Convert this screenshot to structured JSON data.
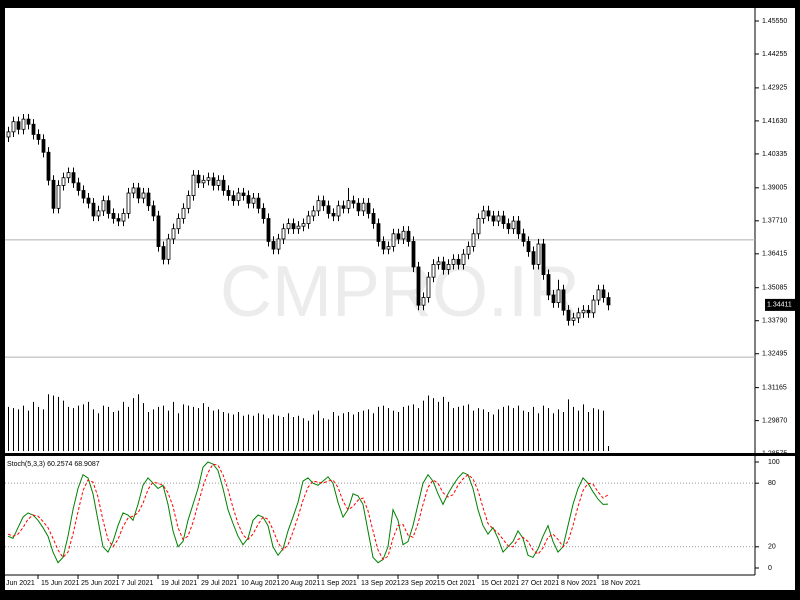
{
  "chart_data": [
    {
      "type": "candlestick",
      "watermark": "CMPRO.IR",
      "ylim": [
        1.286,
        1.4606
      ],
      "xlim": [
        -0.6,
        149.4
      ],
      "yticks": [
        {
          "value": 1.4555,
          "label": "1.45550"
        },
        {
          "value": 1.44255,
          "label": "1.44255"
        },
        {
          "value": 1.42925,
          "label": "1.42925"
        },
        {
          "value": 1.4163,
          "label": "1.41630"
        },
        {
          "value": 1.40335,
          "label": "1.40335"
        },
        {
          "value": 1.39005,
          "label": "1.39005"
        },
        {
          "value": 1.3771,
          "label": "1.37710"
        },
        {
          "value": 1.36415,
          "label": "1.36415"
        },
        {
          "value": 1.35085,
          "label": "1.35085"
        },
        {
          "value": 1.3379,
          "label": "1.33790"
        },
        {
          "value": 1.32495,
          "label": "1.32495"
        },
        {
          "value": 1.31165,
          "label": "1.31165"
        },
        {
          "value": 1.2987,
          "label": "1.29870"
        },
        {
          "value": 1.28575,
          "label": "1.28575"
        }
      ],
      "hlines": [
        1.3696,
        1.3236
      ],
      "last_price": 1.34411,
      "up_color": "#ffffff",
      "down_color": "#000000",
      "candles": [
        [
          1.41,
          1.414,
          1.408,
          1.412
        ],
        [
          1.412,
          1.418,
          1.41,
          1.416
        ],
        [
          1.416,
          1.418,
          1.411,
          1.413
        ],
        [
          1.413,
          1.419,
          1.411,
          1.417
        ],
        [
          1.417,
          1.419,
          1.413,
          1.415
        ],
        [
          1.415,
          1.417,
          1.409,
          1.411
        ],
        [
          1.411,
          1.413,
          1.407,
          1.409
        ],
        [
          1.409,
          1.411,
          1.402,
          1.404
        ],
        [
          1.404,
          1.406,
          1.391,
          1.393
        ],
        [
          1.393,
          1.395,
          1.38,
          1.382
        ],
        [
          1.382,
          1.393,
          1.38,
          1.391
        ],
        [
          1.391,
          1.396,
          1.389,
          1.394
        ],
        [
          1.394,
          1.398,
          1.392,
          1.396
        ],
        [
          1.396,
          1.398,
          1.39,
          1.392
        ],
        [
          1.392,
          1.394,
          1.387,
          1.389
        ],
        [
          1.389,
          1.391,
          1.384,
          1.386
        ],
        [
          1.386,
          1.388,
          1.382,
          1.384
        ],
        [
          1.384,
          1.386,
          1.377,
          1.379
        ],
        [
          1.379,
          1.383,
          1.377,
          1.381
        ],
        [
          1.381,
          1.387,
          1.379,
          1.385
        ],
        [
          1.385,
          1.387,
          1.378,
          1.38
        ],
        [
          1.38,
          1.382,
          1.376,
          1.378
        ],
        [
          1.378,
          1.38,
          1.375,
          1.377
        ],
        [
          1.377,
          1.382,
          1.375,
          1.38
        ],
        [
          1.38,
          1.39,
          1.378,
          1.388
        ],
        [
          1.388,
          1.392,
          1.386,
          1.39
        ],
        [
          1.39,
          1.392,
          1.384,
          1.386
        ],
        [
          1.386,
          1.39,
          1.384,
          1.388
        ],
        [
          1.388,
          1.39,
          1.381,
          1.383
        ],
        [
          1.383,
          1.385,
          1.377,
          1.379
        ],
        [
          1.379,
          1.381,
          1.365,
          1.367
        ],
        [
          1.367,
          1.369,
          1.36,
          1.362
        ],
        [
          1.362,
          1.372,
          1.36,
          1.37
        ],
        [
          1.37,
          1.376,
          1.368,
          1.374
        ],
        [
          1.374,
          1.38,
          1.372,
          1.378
        ],
        [
          1.378,
          1.384,
          1.376,
          1.382
        ],
        [
          1.382,
          1.389,
          1.38,
          1.387
        ],
        [
          1.387,
          1.397,
          1.385,
          1.395
        ],
        [
          1.395,
          1.397,
          1.39,
          1.392
        ],
        [
          1.392,
          1.395,
          1.39,
          1.393
        ],
        [
          1.393,
          1.396,
          1.391,
          1.394
        ],
        [
          1.394,
          1.396,
          1.389,
          1.391
        ],
        [
          1.391,
          1.395,
          1.389,
          1.393
        ],
        [
          1.393,
          1.395,
          1.387,
          1.389
        ],
        [
          1.389,
          1.391,
          1.385,
          1.387
        ],
        [
          1.387,
          1.389,
          1.383,
          1.385
        ],
        [
          1.385,
          1.39,
          1.383,
          1.388
        ],
        [
          1.388,
          1.39,
          1.385,
          1.387
        ],
        [
          1.387,
          1.389,
          1.382,
          1.384
        ],
        [
          1.384,
          1.388,
          1.382,
          1.386
        ],
        [
          1.386,
          1.388,
          1.38,
          1.382
        ],
        [
          1.382,
          1.384,
          1.376,
          1.378
        ],
        [
          1.378,
          1.38,
          1.367,
          1.369
        ],
        [
          1.369,
          1.371,
          1.364,
          1.366
        ],
        [
          1.366,
          1.372,
          1.364,
          1.37
        ],
        [
          1.37,
          1.376,
          1.368,
          1.374
        ],
        [
          1.374,
          1.378,
          1.372,
          1.376
        ],
        [
          1.376,
          1.378,
          1.372,
          1.374
        ],
        [
          1.374,
          1.377,
          1.372,
          1.375
        ],
        [
          1.375,
          1.378,
          1.373,
          1.376
        ],
        [
          1.376,
          1.381,
          1.374,
          1.379
        ],
        [
          1.379,
          1.383,
          1.377,
          1.381
        ],
        [
          1.381,
          1.387,
          1.379,
          1.385
        ],
        [
          1.385,
          1.387,
          1.381,
          1.383
        ],
        [
          1.383,
          1.385,
          1.378,
          1.38
        ],
        [
          1.38,
          1.382,
          1.377,
          1.379
        ],
        [
          1.379,
          1.385,
          1.377,
          1.383
        ],
        [
          1.383,
          1.385,
          1.38,
          1.382
        ],
        [
          1.382,
          1.39,
          1.38,
          1.385
        ],
        [
          1.385,
          1.387,
          1.382,
          1.384
        ],
        [
          1.384,
          1.386,
          1.379,
          1.381
        ],
        [
          1.381,
          1.386,
          1.379,
          1.384
        ],
        [
          1.384,
          1.386,
          1.378,
          1.38
        ],
        [
          1.38,
          1.382,
          1.374,
          1.376
        ],
        [
          1.376,
          1.378,
          1.367,
          1.369
        ],
        [
          1.369,
          1.371,
          1.364,
          1.366
        ],
        [
          1.366,
          1.369,
          1.364,
          1.367
        ],
        [
          1.367,
          1.374,
          1.365,
          1.372
        ],
        [
          1.372,
          1.374,
          1.368,
          1.37
        ],
        [
          1.37,
          1.375,
          1.368,
          1.373
        ],
        [
          1.373,
          1.375,
          1.367,
          1.369
        ],
        [
          1.369,
          1.371,
          1.357,
          1.359
        ],
        [
          1.359,
          1.361,
          1.342,
          1.344
        ],
        [
          1.344,
          1.349,
          1.342,
          1.347
        ],
        [
          1.347,
          1.357,
          1.345,
          1.355
        ],
        [
          1.355,
          1.362,
          1.353,
          1.36
        ],
        [
          1.36,
          1.363,
          1.358,
          1.361
        ],
        [
          1.361,
          1.363,
          1.356,
          1.358
        ],
        [
          1.358,
          1.362,
          1.356,
          1.36
        ],
        [
          1.36,
          1.364,
          1.358,
          1.362
        ],
        [
          1.362,
          1.364,
          1.358,
          1.36
        ],
        [
          1.36,
          1.366,
          1.358,
          1.364
        ],
        [
          1.364,
          1.369,
          1.362,
          1.367
        ],
        [
          1.367,
          1.374,
          1.365,
          1.372
        ],
        [
          1.372,
          1.38,
          1.37,
          1.378
        ],
        [
          1.378,
          1.383,
          1.376,
          1.381
        ],
        [
          1.381,
          1.383,
          1.377,
          1.379
        ],
        [
          1.379,
          1.381,
          1.375,
          1.377
        ],
        [
          1.377,
          1.381,
          1.375,
          1.379
        ],
        [
          1.379,
          1.381,
          1.374,
          1.376
        ],
        [
          1.376,
          1.378,
          1.372,
          1.374
        ],
        [
          1.374,
          1.379,
          1.372,
          1.377
        ],
        [
          1.377,
          1.379,
          1.37,
          1.372
        ],
        [
          1.372,
          1.374,
          1.367,
          1.369
        ],
        [
          1.369,
          1.371,
          1.363,
          1.365
        ],
        [
          1.365,
          1.367,
          1.358,
          1.36
        ],
        [
          1.36,
          1.37,
          1.358,
          1.368
        ],
        [
          1.368,
          1.37,
          1.354,
          1.356
        ],
        [
          1.356,
          1.358,
          1.346,
          1.348
        ],
        [
          1.348,
          1.35,
          1.343,
          1.345
        ],
        [
          1.345,
          1.354,
          1.343,
          1.35
        ],
        [
          1.35,
          1.352,
          1.34,
          1.342
        ],
        [
          1.342,
          1.344,
          1.336,
          1.338
        ],
        [
          1.338,
          1.341,
          1.336,
          1.339
        ],
        [
          1.339,
          1.343,
          1.337,
          1.341
        ],
        [
          1.341,
          1.344,
          1.339,
          1.342
        ],
        [
          1.342,
          1.344,
          1.339,
          1.341
        ],
        [
          1.341,
          1.348,
          1.339,
          1.346
        ],
        [
          1.346,
          1.352,
          1.344,
          1.35
        ],
        [
          1.35,
          1.352,
          1.345,
          1.347
        ],
        [
          1.347,
          1.349,
          1.342,
          1.34411
        ]
      ]
    },
    {
      "type": "bar",
      "ylim": [
        0,
        100
      ],
      "xlim": [
        -0.6,
        149.4
      ],
      "color": "#000000",
      "values": [
        70,
        68,
        66,
        72,
        64,
        78,
        70,
        66,
        90,
        88,
        86,
        80,
        70,
        68,
        72,
        74,
        78,
        66,
        60,
        72,
        70,
        62,
        64,
        78,
        70,
        84,
        90,
        76,
        62,
        66,
        70,
        72,
        64,
        78,
        60,
        74,
        72,
        70,
        68,
        76,
        70,
        64,
        66,
        62,
        60,
        58,
        62,
        56,
        58,
        56,
        60,
        58,
        52,
        58,
        56,
        54,
        60,
        54,
        56,
        52,
        48,
        58,
        64,
        52,
        50,
        62,
        56,
        60,
        62,
        58,
        62,
        64,
        66,
        60,
        70,
        72,
        68,
        64,
        62,
        70,
        72,
        74,
        68,
        80,
        88,
        84,
        78,
        86,
        78,
        68,
        70,
        72,
        74,
        64,
        68,
        66,
        62,
        58,
        66,
        70,
        72,
        68,
        72,
        64,
        62,
        70,
        60,
        72,
        68,
        60,
        66,
        62,
        82,
        70,
        64,
        74,
        62,
        68,
        66,
        64,
        8
      ]
    },
    {
      "type": "line",
      "title": "Stoch(5,3,3) 60.2574 68.9087",
      "ylim": [
        -6.6,
        104.7
      ],
      "xlim": [
        -0.6,
        149.4
      ],
      "yticks": [
        100,
        80,
        20,
        0
      ],
      "levels": [
        80,
        20
      ],
      "xticks": [
        {
          "value": -1,
          "label": "Jun 2021"
        },
        {
          "value": 6,
          "label": "15 Jun 2021"
        },
        {
          "value": 14,
          "label": "25 Jun 2021"
        },
        {
          "value": 22,
          "label": "7 Jul 2021"
        },
        {
          "value": 30,
          "label": "19 Jul 2021"
        },
        {
          "value": 38,
          "label": "29 Jul 2021"
        },
        {
          "value": 46,
          "label": "10 Aug 2021"
        },
        {
          "value": 54,
          "label": "20 Aug 2021"
        },
        {
          "value": 62,
          "label": "1 Sep 2021"
        },
        {
          "value": 70,
          "label": "13 Sep 2021"
        },
        {
          "value": 78,
          "label": "23 Sep 2021"
        },
        {
          "value": 86,
          "label": "5 Oct 2021"
        },
        {
          "value": 94,
          "label": "15 Oct 2021"
        },
        {
          "value": 102,
          "label": "27 Oct 2021"
        },
        {
          "value": 110,
          "label": "8 Nov 2021"
        },
        {
          "value": 118,
          "label": "18 Nov 2021"
        }
      ],
      "series": [
        {
          "color": "#008000",
          "dashed": false,
          "values": [
            30,
            28,
            38,
            48,
            52,
            50,
            45,
            38,
            30,
            15,
            5,
            10,
            30,
            55,
            75,
            88,
            85,
            70,
            45,
            20,
            15,
            25,
            40,
            52,
            50,
            45,
            60,
            78,
            85,
            80,
            75,
            78,
            60,
            35,
            20,
            25,
            45,
            60,
            75,
            95,
            100,
            98,
            92,
            75,
            55,
            42,
            30,
            22,
            28,
            45,
            50,
            48,
            40,
            20,
            12,
            18,
            35,
            48,
            62,
            82,
            85,
            80,
            78,
            82,
            86,
            80,
            62,
            48,
            55,
            70,
            68,
            60,
            35,
            10,
            5,
            8,
            20,
            55,
            45,
            22,
            25,
            40,
            60,
            80,
            88,
            82,
            70,
            60,
            70,
            78,
            85,
            90,
            88,
            75,
            55,
            40,
            32,
            38,
            28,
            15,
            20,
            25,
            35,
            28,
            12,
            10,
            18,
            30,
            40,
            25,
            15,
            20,
            40,
            60,
            75,
            85,
            80,
            72,
            65,
            60,
            60.2574
          ]
        },
        {
          "color": "#ff0000",
          "dashed": true,
          "values": [
            32,
            30,
            32,
            38,
            46,
            50,
            49,
            44,
            38,
            28,
            17,
            10,
            15,
            32,
            53,
            73,
            83,
            81,
            67,
            45,
            27,
            20,
            27,
            39,
            47,
            49,
            52,
            61,
            74,
            81,
            80,
            78,
            71,
            58,
            38,
            27,
            30,
            43,
            60,
            77,
            90,
            98,
            97,
            88,
            74,
            57,
            42,
            31,
            27,
            32,
            41,
            48,
            46,
            36,
            24,
            17,
            22,
            34,
            48,
            64,
            76,
            82,
            81,
            80,
            82,
            83,
            76,
            63,
            55,
            58,
            64,
            66,
            54,
            35,
            17,
            8,
            11,
            28,
            40,
            41,
            31,
            29,
            42,
            60,
            76,
            83,
            80,
            71,
            67,
            69,
            78,
            84,
            88,
            84,
            73,
            57,
            42,
            37,
            33,
            27,
            21,
            20,
            27,
            29,
            25,
            17,
            13,
            19,
            29,
            32,
            27,
            20,
            25,
            40,
            58,
            73,
            80,
            79,
            72,
            66,
            68.9087
          ]
        }
      ]
    }
  ]
}
